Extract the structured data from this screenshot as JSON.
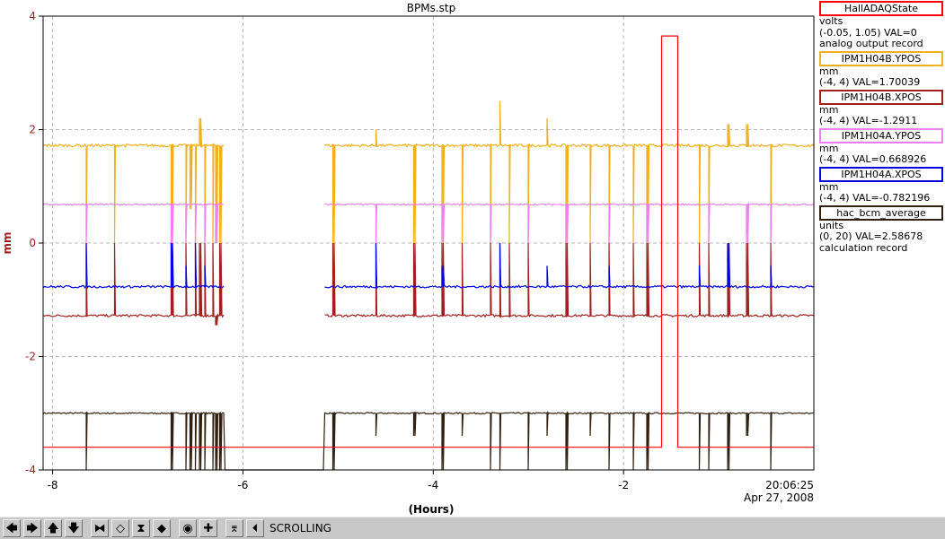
{
  "chart_data": {
    "type": "line",
    "title": "BPMs.stp",
    "xlabel": "(Hours)",
    "ylabel": "mm",
    "xlim": [
      -8.1,
      0.0
    ],
    "ylim": [
      -4,
      4
    ],
    "x_ticks": [
      -8,
      -6,
      -4,
      -2
    ],
    "x_tick_labels": [
      "-8",
      "-6",
      "-4",
      "-2"
    ],
    "y_ticks": [
      -4,
      -2,
      0,
      2,
      4
    ],
    "y_tick_labels": [
      "-4",
      "-2",
      "0",
      "2",
      "4"
    ],
    "end_time_label": "20:06:25",
    "end_date_label": "Apr 27, 2008",
    "grid": true,
    "legend_position": "right",
    "gap": [
      -6.2,
      -5.15
    ],
    "series": [
      {
        "name": "HallADAQState",
        "color": "#ff0000",
        "units": "volts",
        "range": "(-0.05, 1.05)",
        "value_text": "VAL=0",
        "record_text": "analog output record",
        "kind": "step",
        "points": [
          [
            -8.1,
            -3.6
          ],
          [
            -1.6,
            -3.6
          ],
          [
            -1.6,
            3.65
          ],
          [
            -1.43,
            3.65
          ],
          [
            -1.43,
            -3.6
          ],
          [
            0,
            -3.6
          ]
        ]
      },
      {
        "name": "IPM1H04B.YPOS",
        "color": "#f0b020",
        "units": "mm",
        "range": "(-4, 4)",
        "value_text": "VAL=1.70039",
        "record_text": "",
        "kind": "noisy",
        "level": 1.72,
        "noise": 0.025,
        "spikes": [
          [
            -7.65,
            0.0
          ],
          [
            -7.35,
            0.0
          ],
          [
            -6.75,
            0.0
          ],
          [
            -6.6,
            0.0
          ],
          [
            -6.55,
            0.6
          ],
          [
            -6.5,
            0.0
          ],
          [
            -6.45,
            2.2
          ],
          [
            -6.4,
            0.0
          ],
          [
            -6.32,
            0.0
          ],
          [
            -6.28,
            0.0
          ],
          [
            -6.24,
            0.0
          ],
          [
            -5.15,
            0.0
          ],
          [
            -5.05,
            0.0
          ],
          [
            -4.6,
            2.0
          ],
          [
            -4.2,
            0.0
          ],
          [
            -3.9,
            0.0
          ],
          [
            -3.7,
            0.0
          ],
          [
            -3.4,
            0.0
          ],
          [
            -3.3,
            2.5
          ],
          [
            -3.2,
            0.0
          ],
          [
            -3.0,
            0.0
          ],
          [
            -2.8,
            2.2
          ],
          [
            -2.6,
            0.0
          ],
          [
            -2.35,
            0.0
          ],
          [
            -2.15,
            0.0
          ],
          [
            -1.9,
            0.0
          ],
          [
            -1.75,
            0.0
          ],
          [
            -1.2,
            0.0
          ],
          [
            -1.1,
            0.0
          ],
          [
            -0.9,
            2.1
          ],
          [
            -0.7,
            2.1
          ],
          [
            -0.45,
            0.0
          ]
        ]
      },
      {
        "name": "IPM1H04B.XPOS",
        "color": "#a02020",
        "units": "mm",
        "range": "(-4, 4)",
        "value_text": "VAL=-1.2911",
        "record_text": "",
        "kind": "noisy",
        "level": -1.28,
        "noise": 0.02,
        "spikes": [
          [
            -7.65,
            0.0
          ],
          [
            -7.35,
            0.0
          ],
          [
            -6.75,
            0.0
          ],
          [
            -6.6,
            0.0
          ],
          [
            -6.5,
            0.0
          ],
          [
            -6.45,
            0.0
          ],
          [
            -6.4,
            0.0
          ],
          [
            -6.32,
            0.0
          ],
          [
            -6.28,
            -1.45
          ],
          [
            -6.24,
            0.0
          ],
          [
            -5.15,
            0.0
          ],
          [
            -5.05,
            0.0
          ],
          [
            -4.6,
            0.0
          ],
          [
            -4.2,
            0.0
          ],
          [
            -3.9,
            0.0
          ],
          [
            -3.7,
            0.0
          ],
          [
            -3.4,
            0.0
          ],
          [
            -3.3,
            0.0
          ],
          [
            -3.2,
            0.0
          ],
          [
            -3.0,
            0.0
          ],
          [
            -2.6,
            0.0
          ],
          [
            -2.35,
            0.0
          ],
          [
            -2.15,
            0.0
          ],
          [
            -1.9,
            0.0
          ],
          [
            -1.75,
            0.0
          ],
          [
            -1.2,
            0.0
          ],
          [
            -1.1,
            0.0
          ],
          [
            -0.9,
            0.0
          ],
          [
            -0.7,
            0.0
          ],
          [
            -0.45,
            0.0
          ]
        ]
      },
      {
        "name": "IPM1H04A.YPOS",
        "color": "#f080f0",
        "units": "mm",
        "range": "(-4, 4)",
        "value_text": "VAL=0.668926",
        "record_text": "",
        "kind": "noisy",
        "level": 0.68,
        "noise": 0.015,
        "spikes": [
          [
            -7.65,
            0.0
          ],
          [
            -6.75,
            0.0
          ],
          [
            -6.6,
            0.0
          ],
          [
            -6.5,
            0.0
          ],
          [
            -6.4,
            0.0
          ],
          [
            -6.28,
            0.0
          ],
          [
            -5.15,
            0.0
          ],
          [
            -4.6,
            0.0
          ],
          [
            -3.9,
            0.0
          ],
          [
            -3.4,
            0.0
          ],
          [
            -3.0,
            0.0
          ],
          [
            -2.6,
            0.0
          ],
          [
            -2.15,
            0.0
          ],
          [
            -1.75,
            0.0
          ],
          [
            -1.1,
            0.0
          ],
          [
            -0.7,
            0.0
          ],
          [
            -0.45,
            0.0
          ]
        ]
      },
      {
        "name": "IPM1H04A.XPOS",
        "color": "#0000e0",
        "units": "mm",
        "range": "(-4, 4)",
        "value_text": "VAL=-0.782196",
        "record_text": "",
        "kind": "noisy",
        "level": -0.77,
        "noise": 0.02,
        "spikes": [
          [
            -7.65,
            0.0
          ],
          [
            -6.75,
            0.0
          ],
          [
            -6.6,
            -0.4
          ],
          [
            -6.5,
            0.0
          ],
          [
            -6.4,
            -0.4
          ],
          [
            -5.15,
            -0.4
          ],
          [
            -4.6,
            0.0
          ],
          [
            -3.9,
            -0.4
          ],
          [
            -3.3,
            0.0
          ],
          [
            -2.8,
            -0.4
          ],
          [
            -2.15,
            -0.4
          ],
          [
            -1.2,
            -0.4
          ],
          [
            -0.9,
            0.0
          ],
          [
            -0.45,
            -0.4
          ]
        ]
      },
      {
        "name": "hac_bcm_average",
        "color": "#302010",
        "units": "units",
        "range": "(0, 20)",
        "value_text": "VAL=2.58678",
        "record_text": "calculation record",
        "kind": "noisy",
        "level": -3.0,
        "noise": 0.012,
        "gap_level": -4.0,
        "spikes": [
          [
            -7.65,
            -4.0
          ],
          [
            -6.75,
            -4.0
          ],
          [
            -6.6,
            -4.0
          ],
          [
            -6.55,
            -4.0
          ],
          [
            -6.5,
            -4.0
          ],
          [
            -6.45,
            -4.0
          ],
          [
            -6.4,
            -4.0
          ],
          [
            -6.32,
            -4.0
          ],
          [
            -6.28,
            -4.0
          ],
          [
            -6.24,
            -4.0
          ],
          [
            -5.15,
            -4.0
          ],
          [
            -5.05,
            -4.0
          ],
          [
            -4.6,
            -3.4
          ],
          [
            -4.2,
            -3.4
          ],
          [
            -3.9,
            -4.0
          ],
          [
            -3.7,
            -3.4
          ],
          [
            -3.4,
            -4.0
          ],
          [
            -3.3,
            -4.0
          ],
          [
            -3.0,
            -4.0
          ],
          [
            -2.8,
            -3.4
          ],
          [
            -2.6,
            -4.0
          ],
          [
            -2.35,
            -3.4
          ],
          [
            -2.15,
            -4.0
          ],
          [
            -1.9,
            -4.0
          ],
          [
            -1.75,
            -4.0
          ],
          [
            -1.2,
            -4.0
          ],
          [
            -1.1,
            -4.0
          ],
          [
            -0.9,
            -4.0
          ],
          [
            -0.7,
            -3.4
          ],
          [
            -0.45,
            -4.0
          ]
        ]
      }
    ]
  },
  "toolbar": {
    "buttons": [
      {
        "name": "scroll-left-icon",
        "glyph": "🡄"
      },
      {
        "name": "scroll-right-icon",
        "glyph": "🡆"
      },
      {
        "name": "scroll-up-icon",
        "glyph": "🡅"
      },
      {
        "name": "scroll-down-icon",
        "glyph": "🡇"
      },
      {
        "name": "zoom-in-x-icon",
        "glyph": "⧓"
      },
      {
        "name": "zoom-out-x-icon",
        "glyph": "◇"
      },
      {
        "name": "zoom-in-y-icon",
        "glyph": "⧗"
      },
      {
        "name": "zoom-out-y-icon",
        "glyph": "◆"
      },
      {
        "name": "auto-zoom-icon",
        "glyph": "◉"
      },
      {
        "name": "crosshair-icon",
        "glyph": "✚"
      },
      {
        "name": "undo-zoom-icon",
        "glyph": "⌆"
      },
      {
        "name": "scroll-mode-icon",
        "glyph": "⏴"
      }
    ],
    "status": "SCROLLING"
  }
}
